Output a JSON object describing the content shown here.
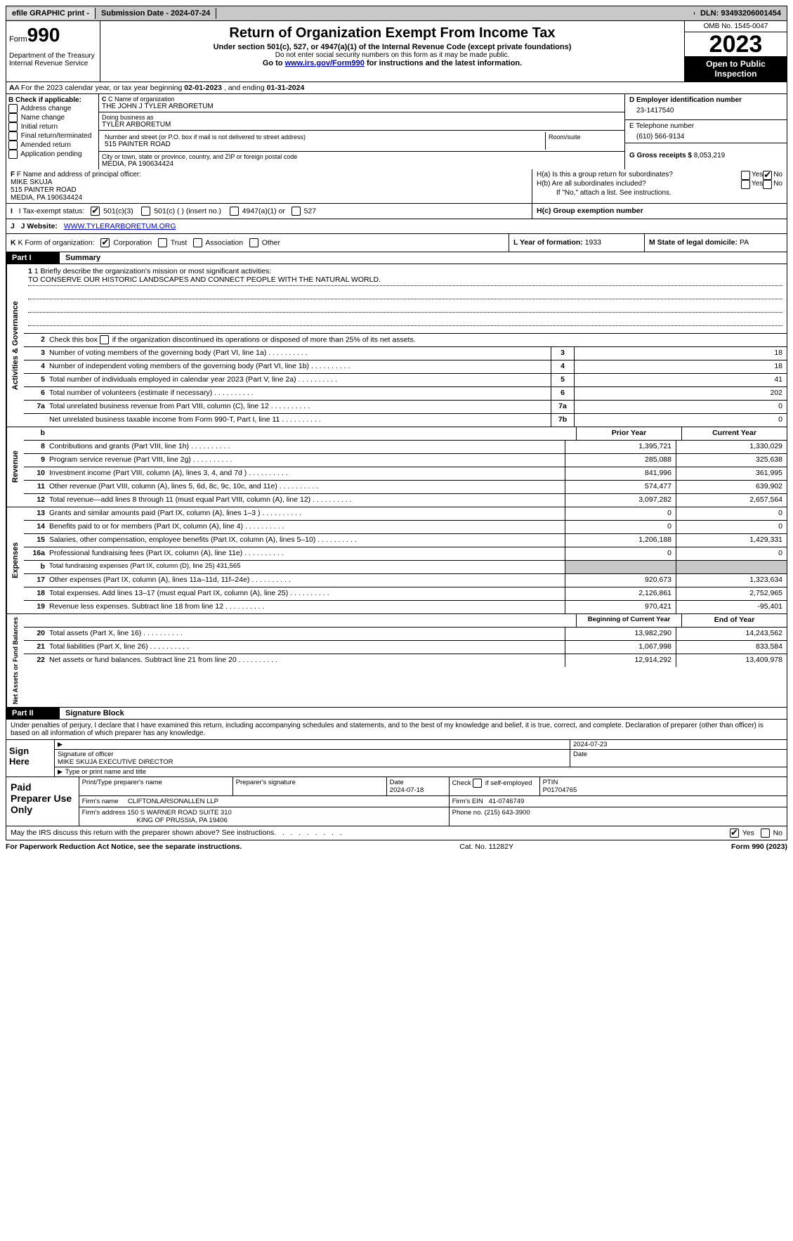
{
  "topbar": {
    "efile": "efile GRAPHIC print -",
    "submission": "Submission Date - 2024-07-24",
    "dln": "DLN: 93493206001454"
  },
  "header": {
    "form_label": "Form",
    "form_number": "990",
    "dept": "Department of the Treasury Internal Revenue Service",
    "title": "Return of Organization Exempt From Income Tax",
    "sub1": "Under section 501(c), 527, or 4947(a)(1) of the Internal Revenue Code (except private foundations)",
    "sub2": "Do not enter social security numbers on this form as it may be made public.",
    "sub3_prefix": "Go to ",
    "sub3_link": "www.irs.gov/Form990",
    "sub3_suffix": " for instructions and the latest information.",
    "omb": "OMB No. 1545-0047",
    "year": "2023",
    "open_pub": "Open to Public Inspection"
  },
  "row_a": {
    "prefix": "A For the 2023 calendar year, or tax year beginning ",
    "begin": "02-01-2023",
    "mid": " , and ending ",
    "end": "01-31-2024"
  },
  "col_b": {
    "label": "B Check if applicable:",
    "opts": [
      "Address change",
      "Name change",
      "Initial return",
      "Final return/terminated",
      "Amended return",
      "Application pending"
    ]
  },
  "col_c": {
    "name_lbl": "C Name of organization",
    "name": "THE JOHN J TYLER ARBORETUM",
    "dba_lbl": "Doing business as",
    "dba": "TYLER ARBORETUM",
    "street_lbl": "Number and street (or P.O. box if mail is not delivered to street address)",
    "street": "515 PAINTER ROAD",
    "room_lbl": "Room/suite",
    "city_lbl": "City or town, state or province, country, and ZIP or foreign postal code",
    "city": "MEDIA, PA  190634424"
  },
  "col_d": {
    "ein_lbl": "D Employer identification number",
    "ein": "23-1417540",
    "phone_lbl": "E Telephone number",
    "phone": "(610) 566-9134",
    "gross_lbl": "G Gross receipts $",
    "gross": "8,053,219"
  },
  "row_f": {
    "lbl": "F Name and address of principal officer:",
    "name": "MIKE SKUJA",
    "street": "515 PAINTER ROAD",
    "city": "MEDIA, PA  190634424"
  },
  "row_h": {
    "a": "H(a) Is this a group return for subordinates?",
    "b": "H(b) Are all subordinates included?",
    "b_note": "If \"No,\" attach a list. See instructions.",
    "c": "H(c) Group exemption number",
    "yes": "Yes",
    "no": "No"
  },
  "row_i": {
    "lbl": "I Tax-exempt status:",
    "o1": "501(c)(3)",
    "o2": "501(c) (  ) (insert no.)",
    "o3": "4947(a)(1) or",
    "o4": "527"
  },
  "row_j": {
    "lbl": "J Website:",
    "url": "WWW.TYLERARBORETUM.ORG"
  },
  "row_k": {
    "lbl": "K Form of organization:",
    "opts": [
      "Corporation",
      "Trust",
      "Association",
      "Other"
    ]
  },
  "row_l": {
    "lbl": "L Year of formation:",
    "val": "1933"
  },
  "row_m": {
    "lbl": "M State of legal domicile:",
    "val": "PA"
  },
  "part1": {
    "hdr": "Part I",
    "title": "Summary"
  },
  "mission": {
    "q": "1 Briefly describe the organization's mission or most significant activities:",
    "text": "TO CONSERVE OUR HISTORIC LANDSCAPES AND CONNECT PEOPLE WITH THE NATURAL WORLD."
  },
  "line2": "2   Check this box        if the organization discontinued its operations or disposed of more than 25% of its net assets.",
  "gov_lines": [
    {
      "n": "3",
      "d": "Number of voting members of the governing body (Part VI, line 1a)",
      "b": "3",
      "v": "18"
    },
    {
      "n": "4",
      "d": "Number of independent voting members of the governing body (Part VI, line 1b)",
      "b": "4",
      "v": "18"
    },
    {
      "n": "5",
      "d": "Total number of individuals employed in calendar year 2023 (Part V, line 2a)",
      "b": "5",
      "v": "41"
    },
    {
      "n": "6",
      "d": "Total number of volunteers (estimate if necessary)",
      "b": "6",
      "v": "202"
    },
    {
      "n": "7a",
      "d": "Total unrelated business revenue from Part VIII, column (C), line 12",
      "b": "7a",
      "v": "0"
    },
    {
      "n": "",
      "d": "Net unrelated business taxable income from Form 990-T, Part I, line 11",
      "b": "7b",
      "v": "0"
    }
  ],
  "col_hdrs": {
    "b": "b",
    "prior": "Prior Year",
    "current": "Current Year"
  },
  "revenue": [
    {
      "n": "8",
      "d": "Contributions and grants (Part VIII, line 1h)",
      "p": "1,395,721",
      "c": "1,330,029"
    },
    {
      "n": "9",
      "d": "Program service revenue (Part VIII, line 2g)",
      "p": "285,088",
      "c": "325,638"
    },
    {
      "n": "10",
      "d": "Investment income (Part VIII, column (A), lines 3, 4, and 7d )",
      "p": "841,996",
      "c": "361,995"
    },
    {
      "n": "11",
      "d": "Other revenue (Part VIII, column (A), lines 5, 6d, 8c, 9c, 10c, and 11e)",
      "p": "574,477",
      "c": "639,902"
    },
    {
      "n": "12",
      "d": "Total revenue—add lines 8 through 11 (must equal Part VIII, column (A), line 12)",
      "p": "3,097,282",
      "c": "2,657,564"
    }
  ],
  "expenses": [
    {
      "n": "13",
      "d": "Grants and similar amounts paid (Part IX, column (A), lines 1–3 )",
      "p": "0",
      "c": "0"
    },
    {
      "n": "14",
      "d": "Benefits paid to or for members (Part IX, column (A), line 4)",
      "p": "0",
      "c": "0"
    },
    {
      "n": "15",
      "d": "Salaries, other compensation, employee benefits (Part IX, column (A), lines 5–10)",
      "p": "1,206,188",
      "c": "1,429,331"
    },
    {
      "n": "16a",
      "d": "Professional fundraising fees (Part IX, column (A), line 11e)",
      "p": "0",
      "c": "0"
    },
    {
      "n": "b",
      "d": "Total fundraising expenses (Part IX, column (D), line 25) 431,565",
      "grey": true
    },
    {
      "n": "17",
      "d": "Other expenses (Part IX, column (A), lines 11a–11d, 11f–24e)",
      "p": "920,673",
      "c": "1,323,634"
    },
    {
      "n": "18",
      "d": "Total expenses. Add lines 13–17 (must equal Part IX, column (A), line 25)",
      "p": "2,126,861",
      "c": "2,752,965"
    },
    {
      "n": "19",
      "d": "Revenue less expenses. Subtract line 18 from line 12",
      "p": "970,421",
      "c": "-95,401"
    }
  ],
  "na_hdrs": {
    "prior": "Beginning of Current Year",
    "current": "End of Year"
  },
  "netassets": [
    {
      "n": "20",
      "d": "Total assets (Part X, line 16)",
      "p": "13,982,290",
      "c": "14,243,562"
    },
    {
      "n": "21",
      "d": "Total liabilities (Part X, line 26)",
      "p": "1,067,998",
      "c": "833,584"
    },
    {
      "n": "22",
      "d": "Net assets or fund balances. Subtract line 21 from line 20",
      "p": "12,914,292",
      "c": "13,409,978"
    }
  ],
  "part2": {
    "hdr": "Part II",
    "title": "Signature Block"
  },
  "perjury": "Under penalties of perjury, I declare that I have examined this return, including accompanying schedules and statements, and to the best of my knowledge and belief, it is true, correct, and complete. Declaration of preparer (other than officer) is based on all information of which preparer has any knowledge.",
  "sign": {
    "lbl": "Sign Here",
    "date": "2024-07-23",
    "sig_lbl": "Signature of officer",
    "name": "MIKE SKUJA  EXECUTIVE DIRECTOR",
    "date_lbl": "Date",
    "type_lbl": "Type or print name and title"
  },
  "preparer": {
    "lbl": "Paid Preparer Use Only",
    "name_lbl": "Print/Type preparer's name",
    "sig_lbl": "Preparer's signature",
    "date_lbl": "Date",
    "date": "2024-07-18",
    "check_lbl": "Check         if self-employed",
    "ptin_lbl": "PTIN",
    "ptin": "P01704765",
    "firm_name_lbl": "Firm's name",
    "firm_name": "CLIFTONLARSONALLEN LLP",
    "firm_ein_lbl": "Firm's EIN",
    "firm_ein": "41-0746749",
    "firm_addr_lbl": "Firm's address",
    "firm_addr1": "150 S WARNER ROAD SUITE 310",
    "firm_addr2": "KING OF PRUSSIA, PA  19406",
    "phone_lbl": "Phone no.",
    "phone": "(215) 643-3900"
  },
  "discuss": {
    "q": "May the IRS discuss this return with the preparer shown above? See instructions.",
    "yes": "Yes",
    "no": "No"
  },
  "footer": {
    "left": "For Paperwork Reduction Act Notice, see the separate instructions.",
    "mid": "Cat. No. 11282Y",
    "right_a": "Form ",
    "right_b": "990",
    "right_c": " (2023)"
  },
  "vlabels": {
    "gov": "Activities & Governance",
    "rev": "Revenue",
    "exp": "Expenses",
    "na": "Net Assets or Fund Balances"
  }
}
